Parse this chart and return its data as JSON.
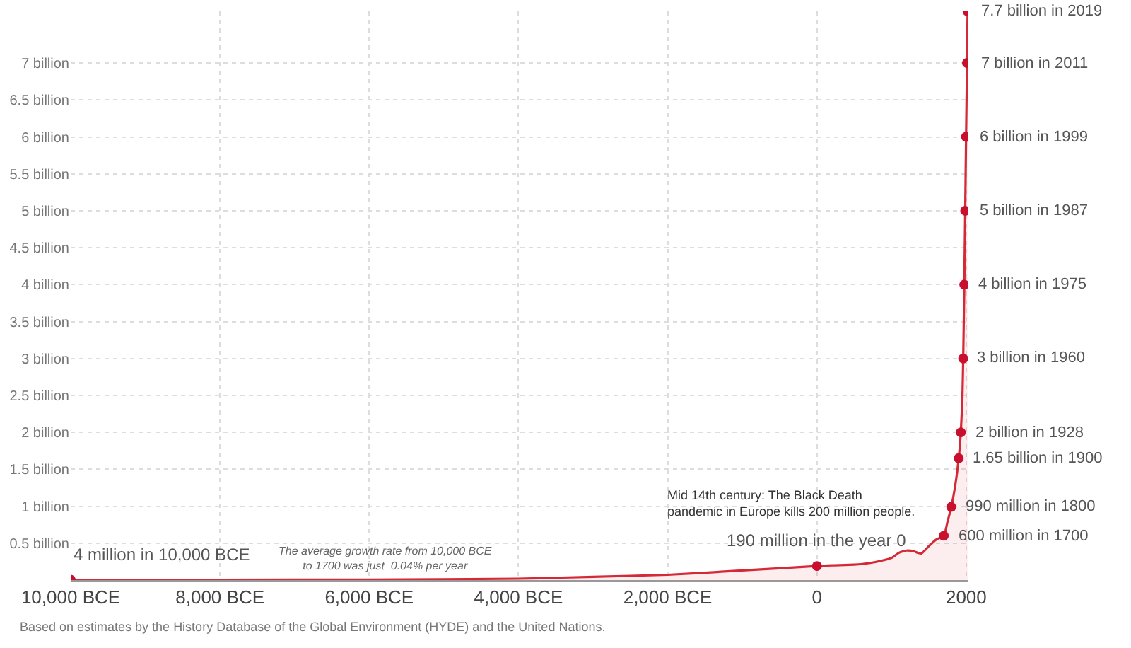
{
  "chart_data": {
    "type": "area",
    "series": [
      {
        "color": "#d42a37",
        "marker": "none",
        "x": [
          -10000,
          -8000,
          -6000,
          -4000,
          -3000,
          -2000,
          -1000,
          0,
          200,
          500,
          700,
          900,
          1000,
          1100,
          1200,
          1300,
          1350,
          1400,
          1500,
          1600,
          1700,
          1750,
          1800,
          1850,
          1900,
          1928,
          1950,
          1960,
          1975,
          1987,
          1999,
          2011,
          2019
        ],
        "values": [
          0.004,
          0.005,
          0.007,
          0.019,
          0.045,
          0.072,
          0.13,
          0.19,
          0.2,
          0.21,
          0.23,
          0.27,
          0.3,
          0.37,
          0.4,
          0.39,
          0.37,
          0.36,
          0.46,
          0.55,
          0.6,
          0.79,
          0.99,
          1.26,
          1.65,
          2,
          2.5,
          3,
          4,
          5,
          6,
          7,
          7.7
        ]
      },
      {
        "type": "scatter",
        "color": "#c8102e",
        "marker": "circle",
        "x": [
          -10000,
          0,
          1700,
          1800,
          1900,
          1928,
          1960,
          1975,
          1987,
          1999,
          2011,
          2019
        ],
        "values": [
          0.004,
          0.19,
          0.6,
          0.99,
          1.65,
          2,
          3,
          4,
          5,
          6,
          7,
          7.7
        ]
      }
    ],
    "xlim": [
      -10000,
      2030
    ],
    "ylim": [
      0,
      7.7
    ],
    "xticks": [
      {
        "value": -10000,
        "label": "10,000 BCE"
      },
      {
        "value": -8000,
        "label": "8,000 BCE"
      },
      {
        "value": -6000,
        "label": "6,000 BCE"
      },
      {
        "value": -4000,
        "label": "4,000 BCE"
      },
      {
        "value": -2000,
        "label": "2,000 BCE"
      },
      0,
      2000
    ],
    "yticks": [
      {
        "value": 0.5,
        "label": "0.5 billion"
      },
      {
        "value": 1,
        "label": "1 billion"
      },
      {
        "value": 1.5,
        "label": "1.5 billion"
      },
      {
        "value": 2,
        "label": "2 billion"
      },
      {
        "value": 2.5,
        "label": "2.5 billion"
      },
      {
        "value": 3,
        "label": "3 billion"
      },
      {
        "value": 3.5,
        "label": "3.5 billion"
      },
      {
        "value": 4,
        "label": "4 billion"
      },
      {
        "value": 4.5,
        "label": "4.5 billion"
      },
      {
        "value": 5,
        "label": "5 billion"
      },
      {
        "value": 5.5,
        "label": "5.5 billion"
      },
      {
        "value": 6,
        "label": "6 billion"
      },
      {
        "value": 6.5,
        "label": "6.5 billion"
      },
      {
        "value": 7,
        "label": "7 billion"
      }
    ],
    "grid": true,
    "annotations": [
      {
        "text": "4 million in 10,000 BCE",
        "x": -10000,
        "y": 0.004
      },
      {
        "text": "190 million in the year 0",
        "x": 0,
        "y": 0.19
      },
      {
        "text": "600 million in 1700",
        "x": 1700,
        "y": 0.6
      },
      {
        "text": "990 million in 1800",
        "x": 1800,
        "y": 0.99
      },
      {
        "text": "1.65 billion in 1900",
        "x": 1900,
        "y": 1.65
      },
      {
        "text": "2 billion in 1928",
        "x": 1928,
        "y": 2
      },
      {
        "text": "3 billion in 1960",
        "x": 1960,
        "y": 3
      },
      {
        "text": "4 billion in 1975",
        "x": 1975,
        "y": 4
      },
      {
        "text": "5 billion in 1987",
        "x": 1987,
        "y": 5
      },
      {
        "text": "6 billion in 1999",
        "x": 1999,
        "y": 6
      },
      {
        "text": "7 billion in 2011",
        "x": 2011,
        "y": 7
      },
      {
        "text": "7.7 billion in 2019",
        "x": 2019,
        "y": 7.7
      },
      {
        "text": "Mid 14th century: The Black Death\npandemic in Europe kills 200 million people.",
        "x": 1350,
        "y": 0.37
      },
      "The average growth rate from 10,000 BCE\nto 1700 was just  0.04% per year",
      "Based on estimates by the History Database of the Global Environment (HYDE) and the United Nations."
    ]
  }
}
